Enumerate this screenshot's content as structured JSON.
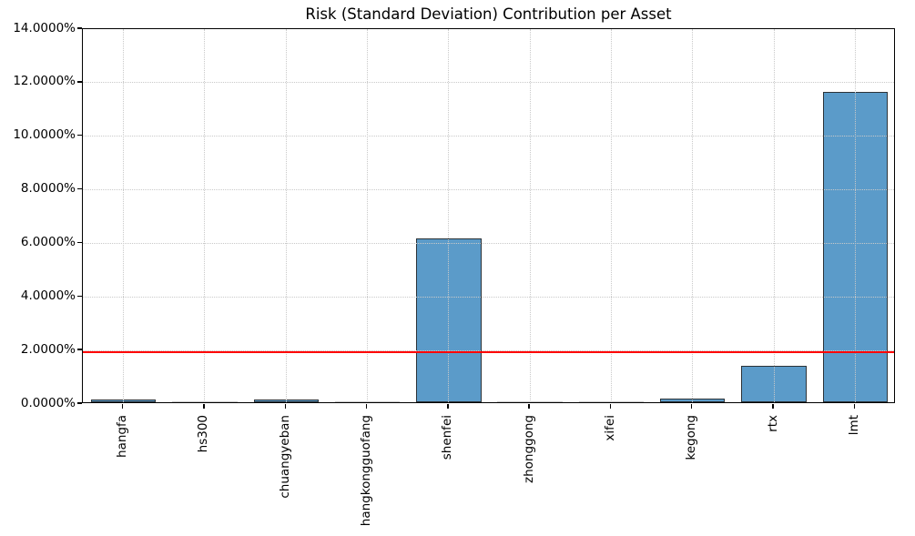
{
  "chart_data": {
    "type": "bar",
    "title": "Risk (Standard Deviation) Contribution per Asset",
    "categories": [
      "hangfa",
      "hs300",
      "chuangyeban",
      "hangkongguofang",
      "shenfei",
      "zhonggong",
      "xifei",
      "kegong",
      "rtx",
      "lmt"
    ],
    "values_pct": [
      0.11,
      0.02,
      0.11,
      0.02,
      6.11,
      0.02,
      0.02,
      0.13,
      1.37,
      11.6
    ],
    "xlabel": "",
    "ylabel": "",
    "ylim_pct": [
      0,
      14
    ],
    "ytick_values_pct": [
      0,
      2,
      4,
      6,
      8,
      10,
      12,
      14
    ],
    "ytick_labels": [
      "0.0000%",
      "2.0000%",
      "4.0000%",
      "6.0000%",
      "8.0000%",
      "10.0000%",
      "12.0000%",
      "14.0000%"
    ],
    "threshold_line_pct": 1.95,
    "grid": true,
    "legend": null,
    "colors": {
      "bar_fill": "#5b9bc9",
      "bar_edge": "#2c3338",
      "near_zero_bar": "#c6c6c6",
      "grid": "#c9c9c9",
      "threshold": "#ff0000",
      "spine": "#000000",
      "background": "#ffffff",
      "text": "#000000"
    }
  }
}
